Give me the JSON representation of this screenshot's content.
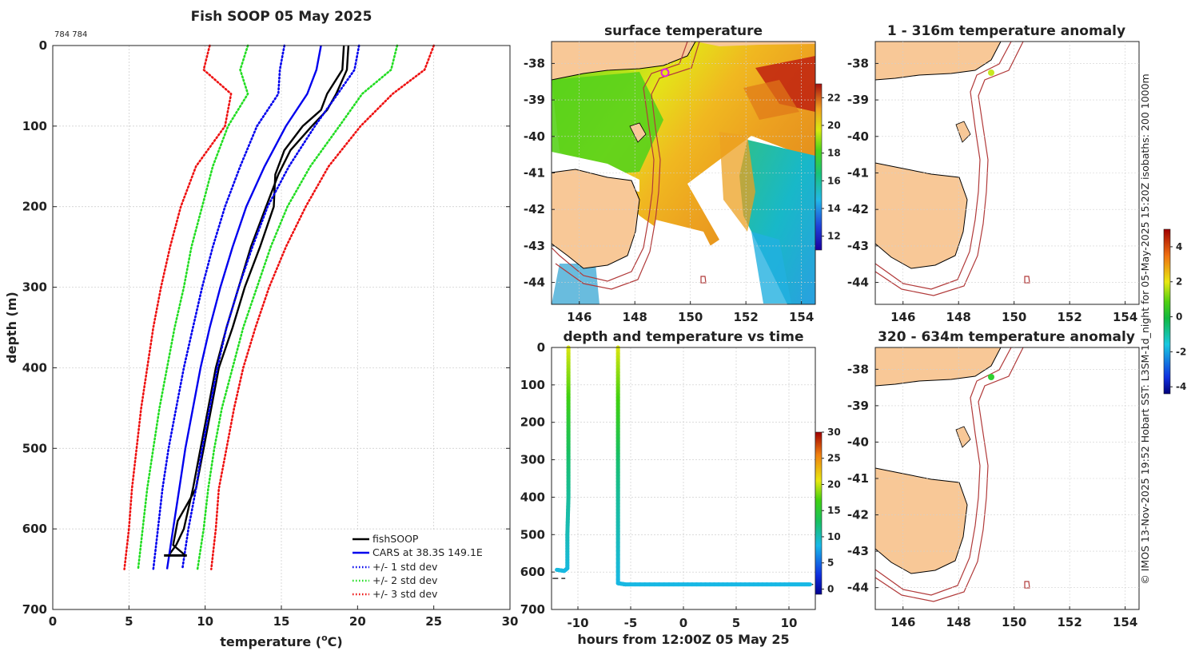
{
  "header": {
    "title": "Fish SOOP 05 May 2025",
    "id_label": "784 784"
  },
  "side_note": "© IMOS 13-Nov-2025 19:52 Hobart SST: L3SM-1d_night for 05-May-2025 15:20Z isobaths: 200  1000m",
  "colors": {
    "land": "#f8c897",
    "isobath": "#b13a3a",
    "fish": "#000000",
    "cars": "#0000ee",
    "std1": "#0000ee",
    "std2": "#22dd22",
    "std3": "#ee1111",
    "marker": "#e020e0"
  },
  "chart_data": [
    {
      "id": "profile",
      "type": "line",
      "xlabel": "temperature (",
      "xlabel_sup": "o",
      "xlabel_end": "C)",
      "ylabel": "depth (m)",
      "xlim": [
        0,
        30
      ],
      "ylim": [
        700,
        0
      ],
      "xticks": [
        "0",
        "5",
        "10",
        "15",
        "20",
        "25",
        "30"
      ],
      "yticks": [
        "0",
        "100",
        "200",
        "300",
        "400",
        "500",
        "600",
        "700"
      ],
      "series": [
        {
          "name": "fishSOOP",
          "style": "solid",
          "color": "#000000",
          "depth": [
            0,
            30,
            60,
            80,
            100,
            130,
            160,
            200,
            250,
            300,
            350,
            400,
            450,
            500,
            550,
            600,
            620,
            633
          ],
          "temp": [
            19.4,
            19.3,
            18.6,
            18.0,
            17.0,
            15.6,
            14.8,
            14.0,
            13.0,
            12.2,
            11.4,
            10.7,
            10.2,
            9.7,
            9.2,
            8.6,
            8.1,
            7.6
          ]
        },
        {
          "name": "fishSOOP",
          "style": "solid",
          "color": "#000000",
          "depth": [
            0,
            30,
            60,
            80,
            100,
            130,
            160,
            200,
            250,
            300,
            350,
            400,
            450,
            500,
            550,
            590,
            620,
            633
          ],
          "temp": [
            19.1,
            19.0,
            18.0,
            17.6,
            16.4,
            15.2,
            14.6,
            14.5,
            13.6,
            12.6,
            11.8,
            10.9,
            10.4,
            9.9,
            9.4,
            8.2,
            7.9,
            8.7
          ]
        },
        {
          "name": "CARS at 38.3S 149.1E",
          "style": "solid",
          "color": "#0000ee",
          "depth": [
            0,
            30,
            60,
            100,
            150,
            200,
            250,
            300,
            350,
            400,
            450,
            500,
            550,
            600,
            650
          ],
          "temp": [
            17.6,
            17.3,
            16.7,
            15.3,
            13.9,
            12.7,
            11.8,
            11.0,
            10.3,
            9.7,
            9.2,
            8.7,
            8.3,
            7.9,
            7.5
          ]
        },
        {
          "name": "+/- 1 std dev",
          "style": "dot",
          "color": "#0000ee",
          "depth": [
            0,
            30,
            60,
            100,
            150,
            200,
            250,
            300,
            350,
            400,
            450,
            500,
            550,
            600,
            650
          ],
          "temp": [
            15.2,
            14.9,
            14.8,
            13.4,
            12.3,
            11.3,
            10.5,
            9.8,
            9.2,
            8.6,
            8.1,
            7.6,
            7.2,
            6.9,
            6.6
          ]
        },
        {
          "name": "+/- 1 std dev",
          "style": "dot",
          "color": "#0000ee",
          "depth": [
            0,
            30,
            60,
            100,
            150,
            200,
            250,
            300,
            350,
            400,
            450,
            500,
            550,
            600,
            650
          ],
          "temp": [
            20.1,
            19.8,
            18.7,
            17.2,
            15.5,
            14.1,
            13.1,
            12.2,
            11.4,
            10.8,
            10.3,
            9.8,
            9.4,
            8.9,
            8.5
          ]
        },
        {
          "name": "+/- 2 std dev",
          "style": "dot",
          "color": "#22dd22",
          "depth": [
            0,
            30,
            60,
            100,
            150,
            200,
            250,
            300,
            350,
            400,
            450,
            500,
            550,
            600,
            650
          ],
          "temp": [
            12.8,
            12.3,
            12.8,
            11.5,
            10.5,
            9.8,
            9.1,
            8.6,
            8.0,
            7.5,
            7.0,
            6.6,
            6.2,
            5.9,
            5.6
          ]
        },
        {
          "name": "+/- 2 std dev",
          "style": "dot",
          "color": "#22dd22",
          "depth": [
            0,
            30,
            60,
            100,
            150,
            200,
            250,
            300,
            350,
            400,
            450,
            500,
            550,
            600,
            650
          ],
          "temp": [
            22.6,
            22.2,
            20.3,
            18.8,
            16.9,
            15.4,
            14.3,
            13.4,
            12.5,
            11.8,
            11.1,
            10.6,
            10.2,
            9.9,
            9.5
          ]
        },
        {
          "name": "+/- 3 std dev",
          "style": "dot",
          "color": "#ee1111",
          "depth": [
            0,
            30,
            60,
            100,
            150,
            200,
            250,
            300,
            350,
            400,
            450,
            500,
            550,
            600,
            650
          ],
          "temp": [
            10.3,
            9.9,
            11.7,
            11.3,
            9.4,
            8.4,
            7.7,
            7.1,
            6.6,
            6.2,
            5.8,
            5.5,
            5.2,
            5.0,
            4.7
          ]
        },
        {
          "name": "+/- 3 std dev",
          "style": "dot",
          "color": "#ee1111",
          "depth": [
            0,
            30,
            60,
            100,
            150,
            200,
            250,
            300,
            350,
            400,
            450,
            500,
            550,
            600,
            650
          ],
          "temp": [
            25.0,
            24.4,
            22.3,
            20.2,
            18.1,
            16.6,
            15.3,
            14.2,
            13.3,
            12.5,
            11.9,
            11.4,
            10.9,
            10.7,
            10.4
          ]
        }
      ],
      "legend": [
        "fishSOOP",
        "CARS at 38.3S 149.1E",
        "+/- 1 std dev",
        "+/- 2 std dev",
        "+/- 3 std dev"
      ],
      "legend_position": "bottom-right"
    },
    {
      "id": "surface",
      "type": "heatmap",
      "title": "surface temperature",
      "lon_range": [
        145,
        154.5
      ],
      "lat_range": [
        -44.6,
        -37.4
      ],
      "xticks": [
        "146",
        "148",
        "150",
        "152",
        "154"
      ],
      "yticks": [
        "-38",
        "-39",
        "-40",
        "-41",
        "-42",
        "-43",
        "-44"
      ],
      "colorbar": {
        "range": [
          11,
          23
        ],
        "ticks": [
          "22",
          "20",
          "18",
          "16",
          "14",
          "12"
        ]
      },
      "marker": {
        "lon": 149.1,
        "lat": -38.3
      }
    },
    {
      "id": "anom_shallow",
      "type": "heatmap",
      "title": "1 - 316m temperature anomaly",
      "lon_range": [
        145,
        154.5
      ],
      "lat_range": [
        -44.6,
        -37.4
      ],
      "xticks": [
        "146",
        "148",
        "150",
        "152",
        "154"
      ],
      "yticks": [
        "-38",
        "-39",
        "-40",
        "-41",
        "-42",
        "-43",
        "-44"
      ],
      "point": {
        "lon": 149.1,
        "lat": -38.3,
        "value": 1.8
      }
    },
    {
      "id": "anom_deep",
      "type": "heatmap",
      "title": "320 - 634m temperature anomaly",
      "lon_range": [
        145,
        154.5
      ],
      "lat_range": [
        -44.6,
        -37.4
      ],
      "xticks": [
        "146",
        "148",
        "150",
        "152",
        "154"
      ],
      "yticks": [
        "-38",
        "-39",
        "-40",
        "-41",
        "-42",
        "-43",
        "-44"
      ],
      "point": {
        "lon": 149.1,
        "lat": -38.3,
        "value": 0.5
      }
    },
    {
      "id": "anom_colorbar",
      "type": "heatmap",
      "range": [
        -4.4,
        5
      ],
      "ticks": [
        "4",
        "2",
        "0",
        "-2",
        "-4"
      ]
    },
    {
      "id": "depth_time",
      "type": "scatter",
      "title": "depth and temperature vs time",
      "xlabel": "hours from 12:00Z 05 May 25",
      "xlim": [
        -12.5,
        12.5
      ],
      "ylim": [
        700,
        0
      ],
      "xticks": [
        "-10",
        "-5",
        "0",
        "5",
        "10"
      ],
      "yticks": [
        "0",
        "100",
        "200",
        "300",
        "400",
        "500",
        "600",
        "700"
      ],
      "colorbar": {
        "range": [
          -1,
          30
        ],
        "ticks": [
          "30",
          "25",
          "20",
          "15",
          "10",
          "5",
          "0"
        ]
      },
      "casts": [
        {
          "hours": [
            -10.9,
            -10.9,
            -10.9,
            -10.9,
            -10.9,
            -11.0,
            -11.0,
            -11.3,
            -12.0
          ],
          "depth": [
            0,
            100,
            200,
            300,
            400,
            500,
            590,
            597,
            594
          ],
          "temp": [
            20.5,
            18,
            15,
            12.5,
            11,
            10,
            8.8,
            8.5,
            8.7
          ]
        },
        {
          "hours": [
            -6.2,
            -6.2,
            -6.2,
            -6.2,
            -6.2,
            -6.2,
            -6.2,
            -5.5,
            0,
            5,
            10,
            12
          ],
          "depth": [
            0,
            100,
            200,
            300,
            400,
            500,
            630,
            633,
            633,
            633,
            633,
            633
          ],
          "temp": [
            20.5,
            18,
            15.5,
            12.5,
            11,
            10,
            8.5,
            8.5,
            8.4,
            8.4,
            8.4,
            8.4
          ]
        }
      ],
      "bottom_depth": [
        {
          "hours": [
            -12.4,
            -11.2
          ],
          "depth": 617
        },
        {
          "hours": [
            -6.2,
            12.3
          ],
          "depth": 633
        }
      ]
    }
  ]
}
